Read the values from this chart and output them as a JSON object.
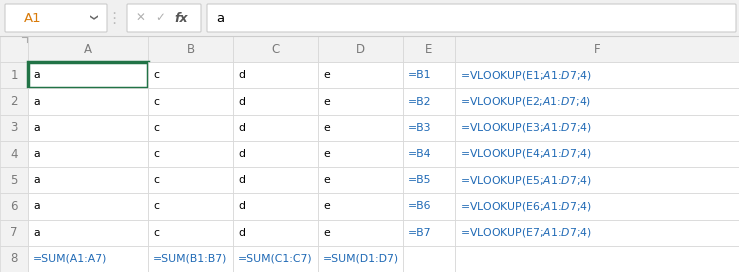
{
  "col_headers": [
    "A",
    "B",
    "C",
    "D",
    "E",
    "F"
  ],
  "cell_data": {
    "A": [
      "a",
      "a",
      "a",
      "a",
      "a",
      "a",
      "a",
      "=SUM(A1:A7)"
    ],
    "B": [
      "c",
      "c",
      "c",
      "c",
      "c",
      "c",
      "c",
      "=SUM(B1:B7)"
    ],
    "C": [
      "d",
      "d",
      "d",
      "d",
      "d",
      "d",
      "d",
      "=SUM(C1:C7)"
    ],
    "D": [
      "e",
      "e",
      "e",
      "e",
      "e",
      "e",
      "e",
      "=SUM(D1:D7)"
    ],
    "E": [
      "=B1",
      "=B2",
      "=B3",
      "=B4",
      "=B5",
      "=B6",
      "=B7",
      ""
    ],
    "F": [
      "=VLOOKUP(E1;$A$1:$D$7;4)",
      "=VLOOKUP(E2;$A$1:$D$7;4)",
      "=VLOOKUP(E3;$A$1:$D$7;4)",
      "=VLOOKUP(E4;$A$1:$D$7;4)",
      "=VLOOKUP(E5;$A$1:$D$7;4)",
      "=VLOOKUP(E6;$A$1:$D$7;4)",
      "=VLOOKUP(E7;$A$1:$D$7;4)",
      ""
    ]
  },
  "cell_ref": "A1",
  "formula_text": "a",
  "selected_cell_col": 0,
  "selected_cell_row": 0,
  "selected_cell_border_color": "#217346",
  "grid_color": "#d4d4d4",
  "header_bg": "#f2f2f2",
  "header_text_color": "#7a7a7a",
  "normal_text_color": "#000000",
  "formula_text_color": "#1f69b5",
  "bg_color": "#ffffff",
  "fb_bg_color": "#f0f0f0",
  "ref_text_color": "#d97b0a",
  "icon_color": "#b0b0b0",
  "icon_fx_color": "#555555",
  "sep_color": "#bbbbbb"
}
